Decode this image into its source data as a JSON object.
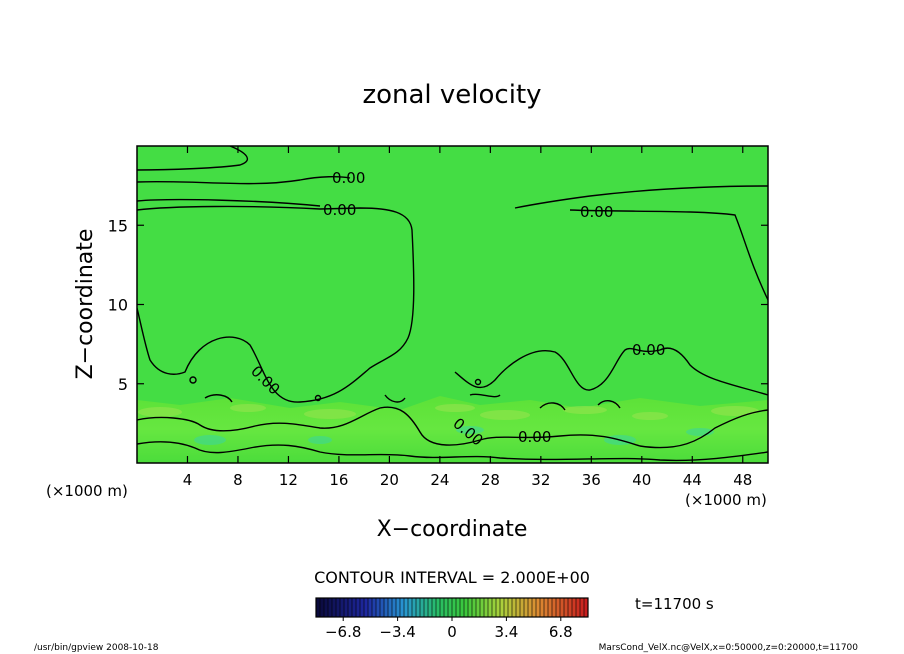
{
  "chart_data": {
    "type": "heatmap",
    "title": "zonal velocity",
    "xlabel": "X−coordinate",
    "ylabel": "Z−coordinate",
    "x_unit": "(×1000 m)",
    "y_unit": "(×1000 m)",
    "xlim": [
      0,
      50
    ],
    "ylim": [
      0,
      20
    ],
    "x_ticks": [
      4,
      8,
      12,
      16,
      20,
      24,
      28,
      32,
      36,
      40,
      44,
      48
    ],
    "y_ticks": [
      5,
      10,
      15
    ],
    "contour_label": "0.00",
    "contour_interval_text": "CONTOUR INTERVAL = 2.000E+00",
    "time_text": "t=11700 s",
    "colorbar": {
      "min": -8.5,
      "max": 8.5,
      "ticks": [
        -6.8,
        -3.4,
        0,
        3.4,
        6.8
      ],
      "tick_labels": [
        "−6.8",
        "−3.4",
        "0",
        "3.4",
        "6.8"
      ]
    },
    "footer_left": "/usr/bin/gpview   2008-10-18",
    "footer_right": "MarsCond_VelX.nc@VelX,x=0:50000,z=0:20000,t=11700"
  }
}
